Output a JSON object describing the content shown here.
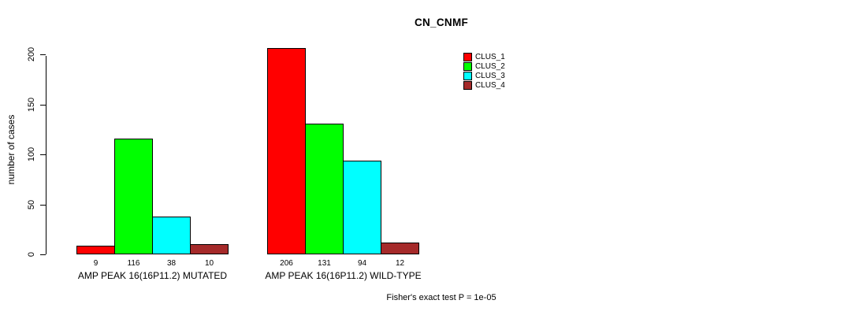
{
  "chart_data": {
    "type": "bar",
    "title": "CN_CNMF",
    "xlabel": "",
    "ylabel": "number of cases",
    "ylim": [
      0,
      210
    ],
    "yticks": [
      0,
      50,
      100,
      150,
      200
    ],
    "grid": false,
    "legend_position": "top-right",
    "categories": [
      "AMP PEAK 16(16P11.2) MUTATED",
      "AMP PEAK 16(16P11.2) WILD-TYPE"
    ],
    "series": [
      {
        "name": "CLUS_1",
        "color": "#FF0000",
        "values": [
          9,
          206
        ]
      },
      {
        "name": "CLUS_2",
        "color": "#00FF00",
        "values": [
          116,
          131
        ]
      },
      {
        "name": "CLUS_3",
        "color": "#00FFFF",
        "values": [
          38,
          94
        ]
      },
      {
        "name": "CLUS_4",
        "color": "#A52A2A",
        "values": [
          10,
          12
        ]
      }
    ],
    "bar_value_labels": [
      [
        "9",
        "116",
        "38",
        "10"
      ],
      [
        "206",
        "131",
        "94",
        "12"
      ]
    ],
    "annotation": "Fisher's exact test P = 1e-05"
  },
  "colors": {
    "background": "#FFFFFF",
    "bar_border": "#000000",
    "axis": "#000000",
    "text": "#000000"
  }
}
